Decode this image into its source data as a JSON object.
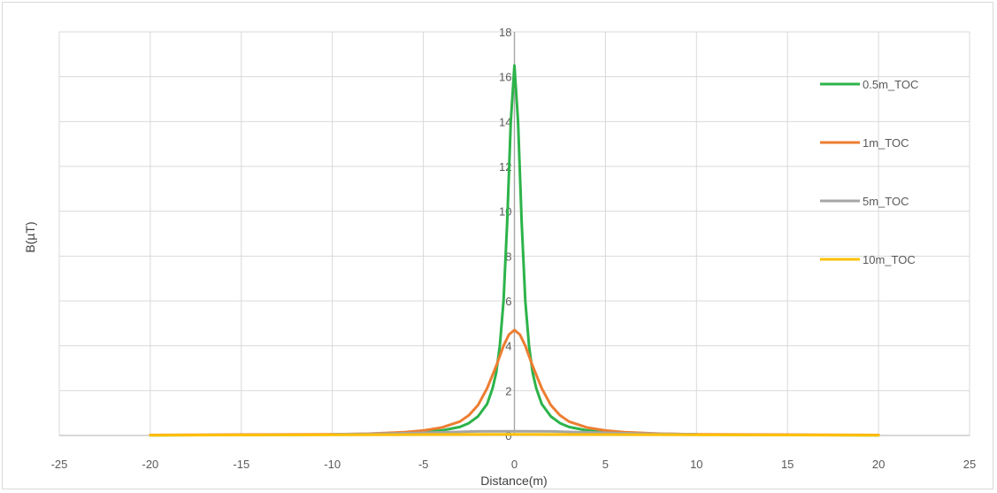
{
  "chart_data": {
    "type": "line",
    "title": "",
    "xlabel": "Distance(m)",
    "ylabel": "B(µT)",
    "xlim": [
      -25,
      25
    ],
    "ylim": [
      0,
      18
    ],
    "xticks": [
      -25,
      -20,
      -15,
      -10,
      -5,
      0,
      5,
      10,
      15,
      20,
      25
    ],
    "yticks": [
      0,
      2,
      4,
      6,
      8,
      10,
      12,
      14,
      16,
      18
    ],
    "grid": true,
    "legend_position": "right",
    "series": [
      {
        "name": "0.5m_TOC",
        "color": "#2db34a",
        "points": [
          [
            -20,
            0.01
          ],
          [
            -10,
            0.04
          ],
          [
            -8,
            0.06
          ],
          [
            -6,
            0.1
          ],
          [
            -5,
            0.15
          ],
          [
            -4,
            0.22
          ],
          [
            -3,
            0.38
          ],
          [
            -2.5,
            0.55
          ],
          [
            -2,
            0.85
          ],
          [
            -1.5,
            1.4
          ],
          [
            -1.2,
            2.1
          ],
          [
            -1.0,
            2.8
          ],
          [
            -0.8,
            4.0
          ],
          [
            -0.6,
            6.0
          ],
          [
            -0.4,
            9.5
          ],
          [
            -0.2,
            14.0
          ],
          [
            0,
            16.5
          ],
          [
            0.2,
            14.0
          ],
          [
            0.4,
            9.5
          ],
          [
            0.6,
            6.0
          ],
          [
            0.8,
            4.0
          ],
          [
            1.0,
            2.8
          ],
          [
            1.2,
            2.1
          ],
          [
            1.5,
            1.4
          ],
          [
            2,
            0.85
          ],
          [
            2.5,
            0.55
          ],
          [
            3,
            0.38
          ],
          [
            4,
            0.22
          ],
          [
            5,
            0.15
          ],
          [
            6,
            0.1
          ],
          [
            8,
            0.06
          ],
          [
            10,
            0.04
          ],
          [
            20,
            0.01
          ]
        ]
      },
      {
        "name": "1m_TOC",
        "color": "#ed7d31",
        "points": [
          [
            -20,
            0.02
          ],
          [
            -10,
            0.05
          ],
          [
            -8,
            0.08
          ],
          [
            -6,
            0.15
          ],
          [
            -5,
            0.22
          ],
          [
            -4,
            0.35
          ],
          [
            -3,
            0.62
          ],
          [
            -2.5,
            0.9
          ],
          [
            -2,
            1.35
          ],
          [
            -1.5,
            2.1
          ],
          [
            -1.0,
            3.1
          ],
          [
            -0.6,
            4.0
          ],
          [
            -0.3,
            4.5
          ],
          [
            0,
            4.7
          ],
          [
            0.3,
            4.5
          ],
          [
            0.6,
            4.0
          ],
          [
            1.0,
            3.1
          ],
          [
            1.5,
            2.1
          ],
          [
            2,
            1.35
          ],
          [
            2.5,
            0.9
          ],
          [
            3,
            0.62
          ],
          [
            4,
            0.35
          ],
          [
            5,
            0.22
          ],
          [
            6,
            0.15
          ],
          [
            8,
            0.08
          ],
          [
            10,
            0.05
          ],
          [
            20,
            0.02
          ]
        ]
      },
      {
        "name": "5m_TOC",
        "color": "#a5a5a5",
        "points": [
          [
            -10,
            0.05
          ],
          [
            -8,
            0.07
          ],
          [
            -6,
            0.1
          ],
          [
            -4,
            0.14
          ],
          [
            -2,
            0.18
          ],
          [
            0,
            0.19
          ],
          [
            2,
            0.18
          ],
          [
            4,
            0.14
          ],
          [
            6,
            0.1
          ],
          [
            8,
            0.07
          ],
          [
            10,
            0.05
          ]
        ]
      },
      {
        "name": "10m_TOC",
        "color": "#ffc000",
        "points": [
          [
            -20,
            0.01
          ],
          [
            -15,
            0.02
          ],
          [
            -10,
            0.03
          ],
          [
            -5,
            0.04
          ],
          [
            0,
            0.05
          ],
          [
            5,
            0.04
          ],
          [
            10,
            0.03
          ],
          [
            15,
            0.02
          ],
          [
            20,
            0.01
          ]
        ]
      }
    ]
  }
}
